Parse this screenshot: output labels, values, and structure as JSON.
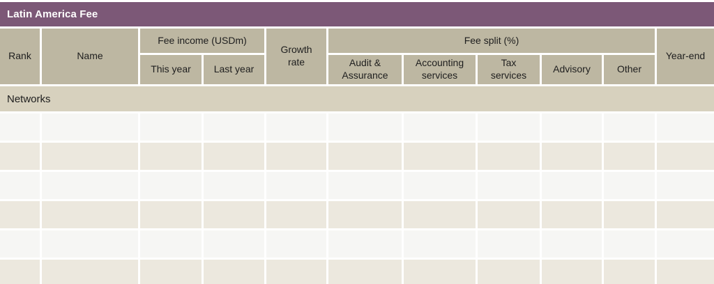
{
  "table": {
    "title": "Latin America Fee",
    "header": {
      "rank": "Rank",
      "name": "Name",
      "fee_income_group": "Fee income (USDm)",
      "this_year": "This year",
      "last_year": "Last year",
      "growth_rate": "Growth rate",
      "fee_split_group": "Fee split (%)",
      "audit_assurance": "Audit & Assurance",
      "accounting_services": "Accounting services",
      "tax_services": "Tax services",
      "advisory": "Advisory",
      "other": "Other",
      "year_end": "Year-end"
    },
    "section_label": "Networks",
    "body": {
      "row_count": 6,
      "column_count": 11,
      "cell_values": []
    }
  },
  "colors": {
    "title_bar_bg": "#7c5877",
    "title_text": "#ffffff",
    "header_bg": "#bdb7a2",
    "header_text": "#1e1e1e",
    "section_bg": "#d7d1be",
    "row_light_bg": "#f6f6f4",
    "row_beige_bg": "#ece8de",
    "gap_bg": "#ffffff"
  }
}
